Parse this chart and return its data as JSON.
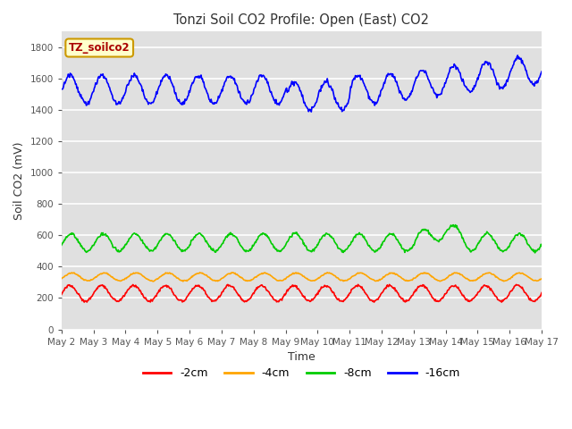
{
  "title": "Tonzi Soil CO2 Profile: Open (East) CO2",
  "ylabel": "Soil CO2 (mV)",
  "xlabel": "Time",
  "legend_label": "TZ_soilco2",
  "ylim": [
    0,
    1900
  ],
  "yticks": [
    0,
    200,
    400,
    600,
    800,
    1000,
    1200,
    1400,
    1600,
    1800
  ],
  "n_days": 15,
  "n_points": 720,
  "series": {
    "-2cm": {
      "color": "#ff0000",
      "mean": 230,
      "amp": 50,
      "daily_amp": 50,
      "phase": 0.0
    },
    "-4cm": {
      "color": "#ffa500",
      "mean": 335,
      "amp": 25,
      "daily_amp": 25,
      "phase": 0.5
    },
    "-8cm": {
      "color": "#00cc00",
      "mean": 555,
      "amp": 55,
      "daily_amp": 55,
      "phase": 0.3
    },
    "-16cm": {
      "color": "#0000ff",
      "mean": 1530,
      "amp": 90,
      "daily_amp": 90,
      "phase": 0.1
    }
  },
  "xtick_labels": [
    "May 2",
    "May 3",
    "May 4",
    "May 5",
    "May 6",
    "May 7",
    "May 8",
    "May 9",
    "May 10",
    "May 11",
    "May 12",
    "May 13",
    "May 14",
    "May 15",
    "May 16",
    "May 17"
  ],
  "background_color": "#ffffff",
  "plot_bg_color": "#e0e0e0",
  "grid_color": "#ffffff",
  "legend_bg": "#ffffcc",
  "legend_border": "#cc9900",
  "legend_text_color": "#aa0000",
  "title_color": "#333333",
  "figsize": [
    6.4,
    4.8
  ],
  "dpi": 100
}
